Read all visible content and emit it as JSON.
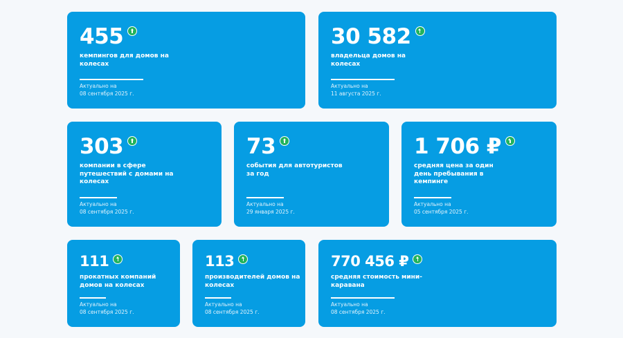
{
  "accent_color": "#069de3",
  "cards": [
    {
      "value": "455",
      "label": "кемпингов для домов на колесах",
      "updated_label": "Актуально на",
      "date": "08 сентября 2025 г.",
      "trend": "up"
    },
    {
      "value": "30 582",
      "label": "владельца домов на колесах",
      "updated_label": "Актуально на",
      "date": "11 августа 2025 г.",
      "trend": "up"
    },
    {
      "value": "303",
      "label": "компании в сфере путешествий с домами на колесах",
      "updated_label": "Актуально на",
      "date": "08 сентября 2025 г.",
      "trend": "up"
    },
    {
      "value": "73",
      "label": "события для автотуристов за год",
      "updated_label": "Актуально на",
      "date": "29 января 2025 г.",
      "trend": "up"
    },
    {
      "value": "1 706 ₽",
      "label": "средняя цена за один день пребывания в кемпинге",
      "updated_label": "Актуально на",
      "date": "05 сентября 2025 г.",
      "trend": "up"
    },
    {
      "value": "111",
      "label": "прокатных компаний домов на колесах",
      "updated_label": "Актуально на",
      "date": "08 сентября 2025 г.",
      "trend": "up"
    },
    {
      "value": "113",
      "label": "производителей домов на колесах",
      "updated_label": "Актуально на",
      "date": "08 сентября 2025 г.",
      "trend": "up"
    },
    {
      "value": "770 456 ₽",
      "label": "средняя стоимость мини-каравана",
      "updated_label": "Актуально на",
      "date": "08 сентября 2025 г.",
      "trend": "up"
    }
  ]
}
